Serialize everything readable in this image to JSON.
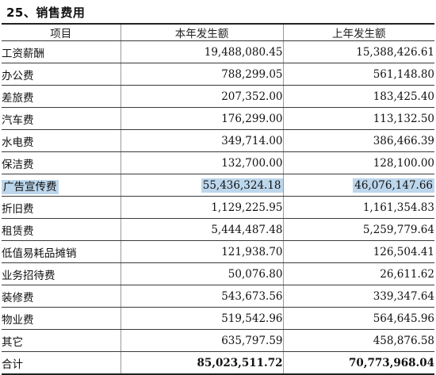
{
  "section_title": "25、销售费用",
  "table": {
    "headers": [
      "项目",
      "本年发生额",
      "上年发生额"
    ],
    "rows": [
      {
        "item": "工资薪酬",
        "current": "19,488,080.45",
        "previous": "15,388,426.61"
      },
      {
        "item": "办公费",
        "current": "788,299.05",
        "previous": "561,148.80"
      },
      {
        "item": "差旅费",
        "current": "207,352.00",
        "previous": "183,425.40"
      },
      {
        "item": "汽车费",
        "current": "176,299.00",
        "previous": "113,132.50"
      },
      {
        "item": "水电费",
        "current": "349,714.00",
        "previous": "386,466.39"
      },
      {
        "item": "保洁费",
        "current": "132,700.00",
        "previous": "128,100.00"
      },
      {
        "item": "广告宣传费",
        "current": "55,436,324.18",
        "previous": "46,076,147.66",
        "highlighted": true
      },
      {
        "item": "折旧费",
        "current": "1,129,225.95",
        "previous": "1,161,354.83"
      },
      {
        "item": "租赁费",
        "current": "5,444,487.48",
        "previous": "5,259,779.64"
      },
      {
        "item": "低值易耗品摊销",
        "current": "121,938.70",
        "previous": "126,504.41"
      },
      {
        "item": "业务招待费",
        "current": "50,076.80",
        "previous": "26,611.62"
      },
      {
        "item": "装修费",
        "current": "543,673.56",
        "previous": "339,347.64"
      },
      {
        "item": "物业费",
        "current": "519,542.96",
        "previous": "564,645.96"
      },
      {
        "item": "其它",
        "current": "635,797.59",
        "previous": "458,876.58"
      }
    ],
    "total": {
      "item": "合计",
      "current": "85,023,511.72",
      "previous": "70,773,968.04"
    }
  },
  "colors": {
    "highlight": "#bcd6ec",
    "text": "#111111",
    "rule": "#3a3a3a"
  }
}
